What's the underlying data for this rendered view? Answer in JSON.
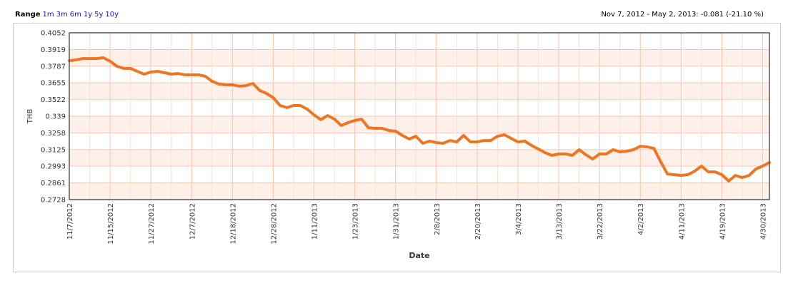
{
  "range_label": "Range",
  "range_options": [
    "1m",
    "3m",
    "6m",
    "1y",
    "5y",
    "10y"
  ],
  "summary": "Nov 7, 2012 - May 2, 2013: -0.081 (-21.10 %)",
  "chart_data": {
    "type": "line",
    "xlabel": "Date",
    "ylabel": "THB",
    "categories": [
      "11/7/2012",
      null,
      null,
      null,
      null,
      null,
      "11/15/2012",
      null,
      null,
      null,
      null,
      null,
      "11/27/2012",
      null,
      null,
      null,
      null,
      null,
      "12/7/2012",
      null,
      null,
      null,
      null,
      null,
      "12/18/2012",
      null,
      null,
      null,
      null,
      null,
      "12/28/2012",
      null,
      null,
      null,
      null,
      null,
      "1/11/2013",
      null,
      null,
      null,
      null,
      null,
      "1/23/2013",
      null,
      null,
      null,
      null,
      null,
      "1/31/2013",
      null,
      null,
      null,
      null,
      null,
      "2/8/2013",
      null,
      null,
      null,
      null,
      null,
      "2/20/2013",
      null,
      null,
      null,
      null,
      null,
      "3/4/2013",
      null,
      null,
      null,
      null,
      null,
      "3/13/2013",
      null,
      null,
      null,
      null,
      null,
      "3/22/2013",
      null,
      null,
      null,
      null,
      null,
      "4/2/2013",
      null,
      null,
      null,
      null,
      null,
      "4/11/2013",
      null,
      null,
      null,
      null,
      null,
      "4/19/2013",
      null,
      null,
      null,
      null,
      null,
      "4/30/2013",
      null
    ],
    "series": [
      {
        "name": "THB",
        "color": "#ee7622",
        "values": [
          0.3831,
          0.3837,
          0.3848,
          0.3848,
          0.3848,
          0.3854,
          0.3826,
          0.3786,
          0.3769,
          0.3769,
          0.3746,
          0.3724,
          0.3741,
          0.3746,
          0.3735,
          0.3724,
          0.3729,
          0.3718,
          0.3718,
          0.3718,
          0.3707,
          0.3667,
          0.3645,
          0.3639,
          0.3639,
          0.3628,
          0.3633,
          0.365,
          0.3594,
          0.3571,
          0.3537,
          0.3475,
          0.3458,
          0.3475,
          0.3475,
          0.3446,
          0.3401,
          0.3362,
          0.3395,
          0.3367,
          0.3316,
          0.3339,
          0.3356,
          0.3367,
          0.3299,
          0.3294,
          0.3294,
          0.3277,
          0.3271,
          0.3237,
          0.3209,
          0.3231,
          0.3175,
          0.3192,
          0.318,
          0.3175,
          0.3197,
          0.3186,
          0.3237,
          0.3186,
          0.3186,
          0.3197,
          0.3197,
          0.3231,
          0.3243,
          0.3214,
          0.3186,
          0.3192,
          0.3158,
          0.3129,
          0.3101,
          0.3079,
          0.309,
          0.309,
          0.3079,
          0.3124,
          0.3084,
          0.305,
          0.309,
          0.309,
          0.3124,
          0.3107,
          0.3112,
          0.3124,
          0.3152,
          0.3146,
          0.3135,
          0.3028,
          0.2931,
          0.2926,
          0.292,
          0.2926,
          0.2954,
          0.2994,
          0.2948,
          0.2948,
          0.2926,
          0.2875,
          0.292,
          0.2903,
          0.292,
          0.2971,
          0.2994,
          0.3022
        ]
      }
    ],
    "ylim": [
      0.2728,
      0.4052
    ],
    "yticks": [
      0.2728,
      0.2861,
      0.2993,
      0.3125,
      0.3258,
      0.339,
      0.3522,
      0.3655,
      0.3787,
      0.3919,
      0.4052
    ],
    "grid": true,
    "legend": false
  }
}
